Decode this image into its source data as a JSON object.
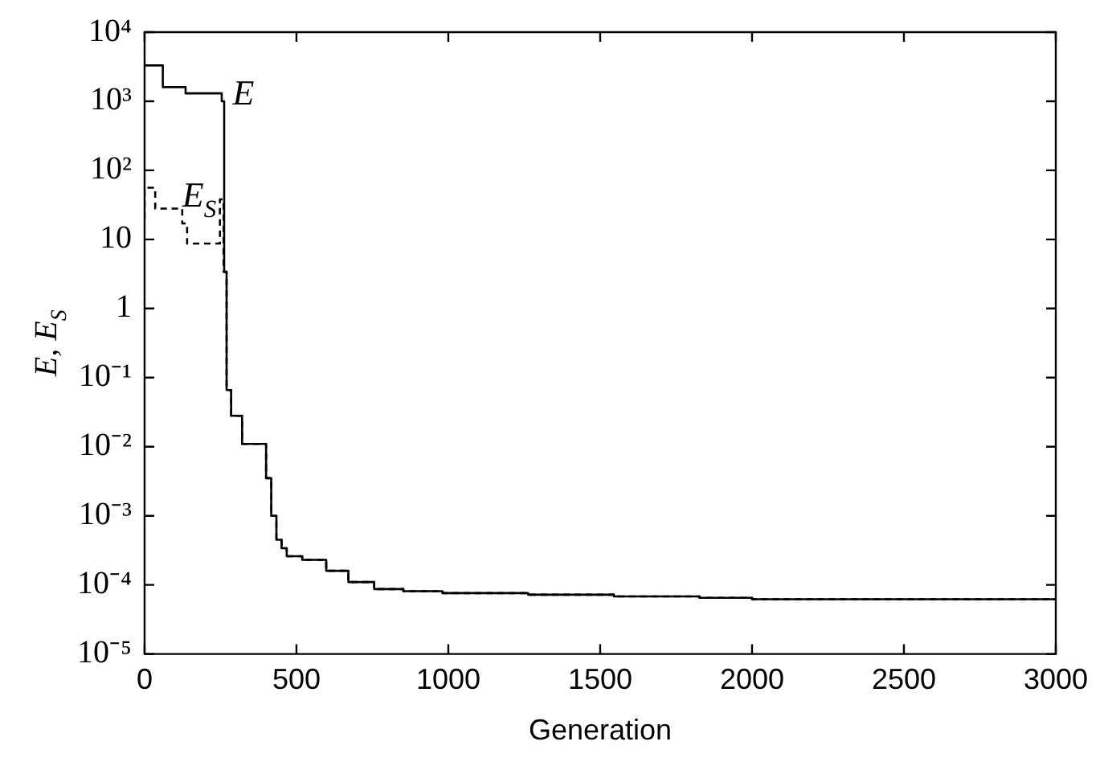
{
  "chart_data": {
    "type": "step",
    "xlabel": "Generation",
    "ylabel": "E, E$_{S}$",
    "log": "y",
    "grid": false,
    "legend": false,
    "xlim": [
      0,
      3000
    ],
    "xticks": [
      0,
      500,
      1000,
      1500,
      2000,
      2500,
      3000
    ],
    "ylim": [
      1e-05,
      10000
    ],
    "yticks": [
      {
        "value": 1e-05,
        "label": "10⁻⁵"
      },
      {
        "value": 0.0001,
        "label": "10⁻⁴"
      },
      {
        "value": 0.001,
        "label": "10⁻³"
      },
      {
        "value": 0.01,
        "label": "10⁻²"
      },
      {
        "value": 0.1,
        "label": "10⁻¹"
      },
      1,
      10,
      {
        "value": 100,
        "label": "10²"
      },
      {
        "value": 1000,
        "label": "10³"
      },
      {
        "value": 10000,
        "label": "10⁴"
      }
    ],
    "series": [
      {
        "color": "#000000",
        "line_style": "solid",
        "x": [
          0,
          60,
          135,
          254,
          262,
          270,
          285,
          321,
          340,
          400,
          417,
          434,
          451,
          468,
          519,
          598,
          671,
          756,
          852,
          981,
          1263,
          1545,
          1827,
          2000,
          3000
        ],
        "values": [
          3500,
          3300,
          1600,
          1300,
          1000,
          3.4,
          0.066,
          0.028,
          0.011,
          0.011,
          0.0035,
          0.001,
          0.00045,
          0.00034,
          0.00026,
          0.00023,
          0.00016,
          0.00011,
          8.7e-05,
          8.1e-05,
          7.6e-05,
          7.2e-05,
          6.8e-05,
          6.5e-05,
          6.2e-05
        ]
      },
      {
        "color": "#000000",
        "line_style": "dashed",
        "x": [
          0,
          35,
          56,
          124,
          140,
          175,
          248,
          260,
          270,
          285,
          321,
          340,
          400,
          417,
          434,
          451,
          468,
          519,
          598,
          671,
          756,
          852,
          981,
          1263,
          1545,
          1827,
          2000,
          3000
        ],
        "values": [
          20,
          56,
          28,
          28,
          17,
          8.7,
          8.7,
          38,
          3.4,
          0.066,
          0.028,
          0.011,
          0.011,
          0.0035,
          0.001,
          0.00045,
          0.00034,
          0.00026,
          0.00023,
          0.00016,
          0.00011,
          8.7e-05,
          8.1e-05,
          7.6e-05,
          7.2e-05,
          6.8e-05,
          6.5e-05,
          6.2e-05
        ]
      }
    ],
    "annotations": [
      {
        "text": "E",
        "x": 290,
        "y": 900
      },
      {
        "text": "E$_{S}$",
        "x": 124,
        "y": 30
      }
    ]
  }
}
